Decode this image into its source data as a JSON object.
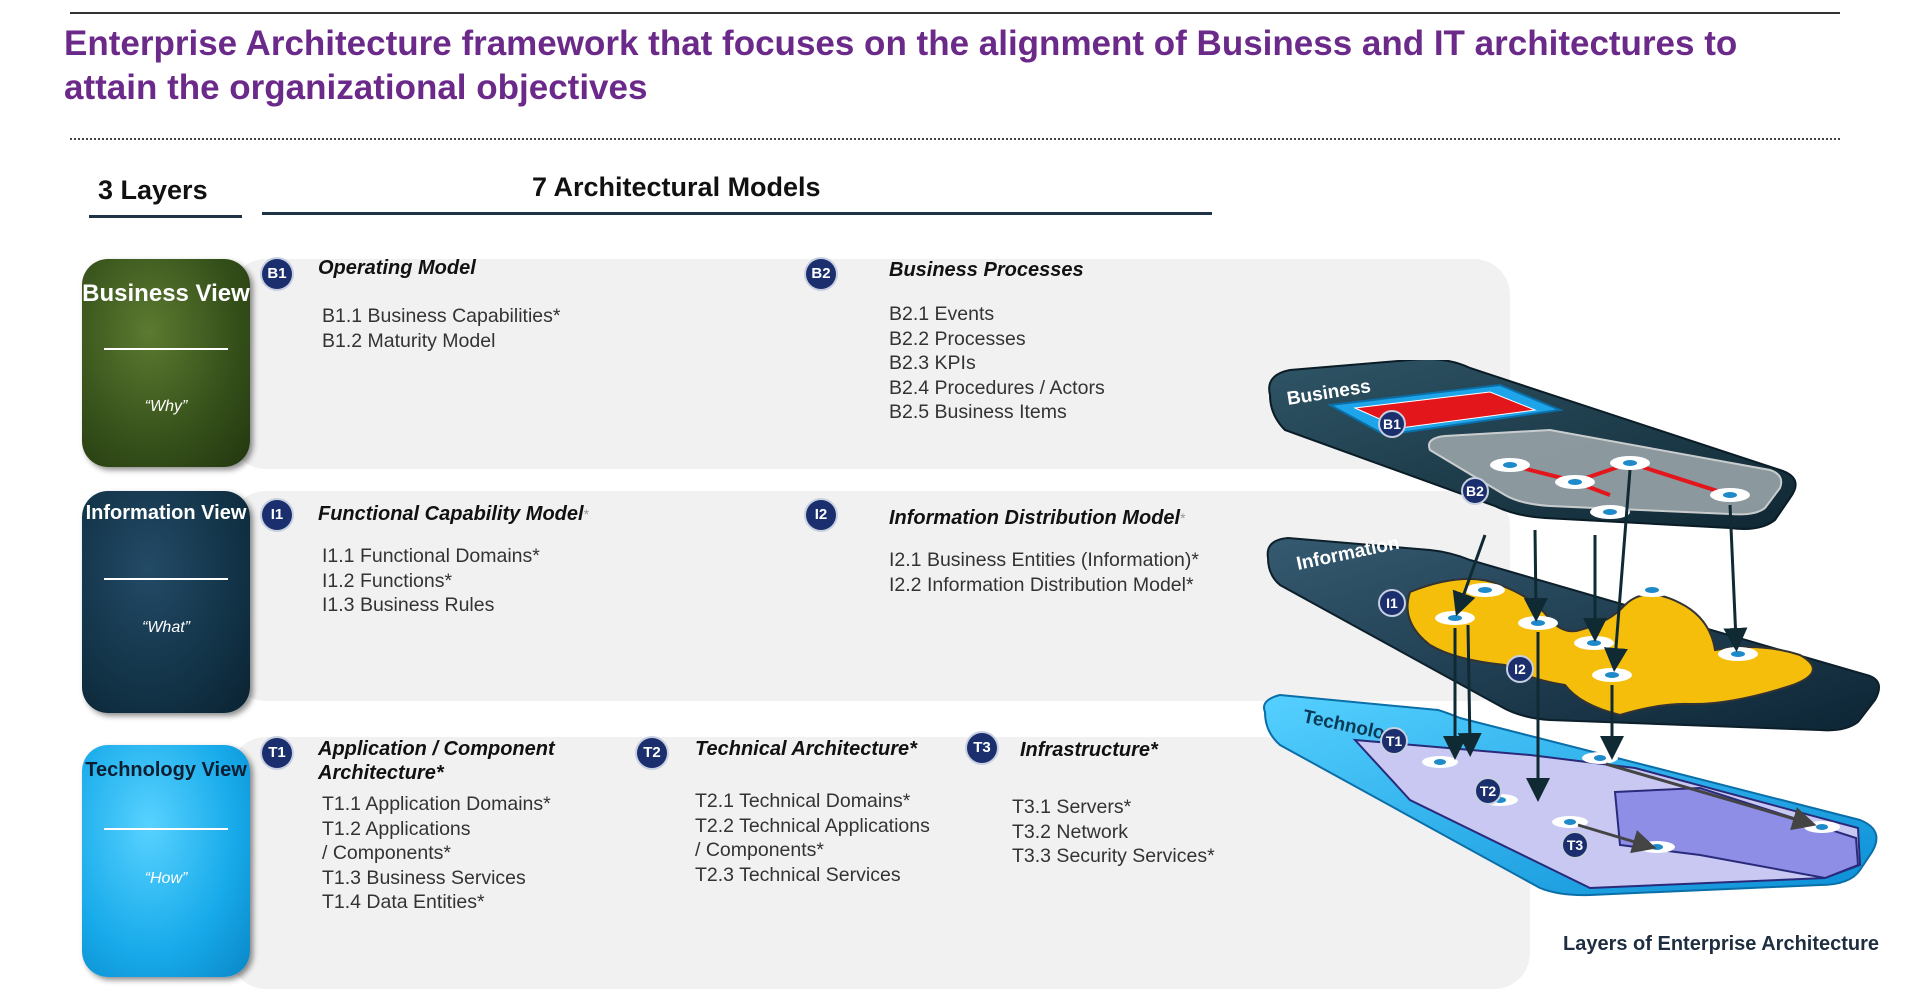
{
  "title": "Enterprise Architecture framework that focuses on the alignment of Business and IT architectures to attain the organizational objectives",
  "headers": {
    "layers": "3 Layers",
    "models": "7 Architectural Models"
  },
  "layers": [
    {
      "name": "Business View",
      "question": "“Why”"
    },
    {
      "name": "Information View",
      "question": "“What”"
    },
    {
      "name": "Technology View",
      "question": "“How”"
    }
  ],
  "models": {
    "b1": {
      "code": "B1",
      "title": "Operating Model",
      "items": [
        "B1.1 Business Capabilities*",
        "B1.2 Maturity Model"
      ]
    },
    "b2": {
      "code": "B2",
      "title": "Business Processes",
      "items": [
        "B2.1 Events",
        "B2.2 Processes",
        "B2.3 KPIs",
        "B2.4 Procedures / Actors",
        "B2.5 Business Items"
      ]
    },
    "i1": {
      "code": "I1",
      "title": "Functional Capability Model",
      "star": "*",
      "items": [
        "I1.1 Functional Domains*",
        "I1.2 Functions*",
        "I1.3 Business Rules"
      ]
    },
    "i2": {
      "code": "I2",
      "title": "Information Distribution Model",
      "star": "*",
      "items": [
        "I2.1 Business Entities (Information)*",
        "I2.2 Information Distribution Model*"
      ]
    },
    "t1": {
      "code": "T1",
      "title_line1": "Application / Component",
      "title_line2": "Architecture*",
      "items": [
        "T1.1 Application Domains*",
        "T1.2 Applications",
        "/ Components*",
        "T1.3 Business Services",
        "T1.4 Data Entities*"
      ]
    },
    "t2": {
      "code": "T2",
      "title": "Technical Architecture*",
      "items": [
        "T2.1 Technical Domains*",
        "T2.2 Technical Applications",
        "/ Components*",
        "T2.3 Technical Services"
      ]
    },
    "t3": {
      "code": "T3",
      "title": "Infrastructure*",
      "items": [
        "T3.1 Servers*",
        "T3.2 Network",
        "T3.3 Security Services*"
      ]
    }
  },
  "illustration": {
    "layer_labels": [
      "Business",
      "Information",
      "Technology"
    ],
    "badges": [
      "B1",
      "B2",
      "I1",
      "I2",
      "T1",
      "T2",
      "T3"
    ],
    "caption": "Layers of Enterprise Architecture"
  },
  "colors": {
    "title": "#6b2a8a",
    "badge": "#1b2f6e",
    "business": "#35501a",
    "information": "#123347",
    "technology": "#17aaea",
    "highlight_yellow": "#f5be0b",
    "highlight_red": "#e3161c"
  }
}
